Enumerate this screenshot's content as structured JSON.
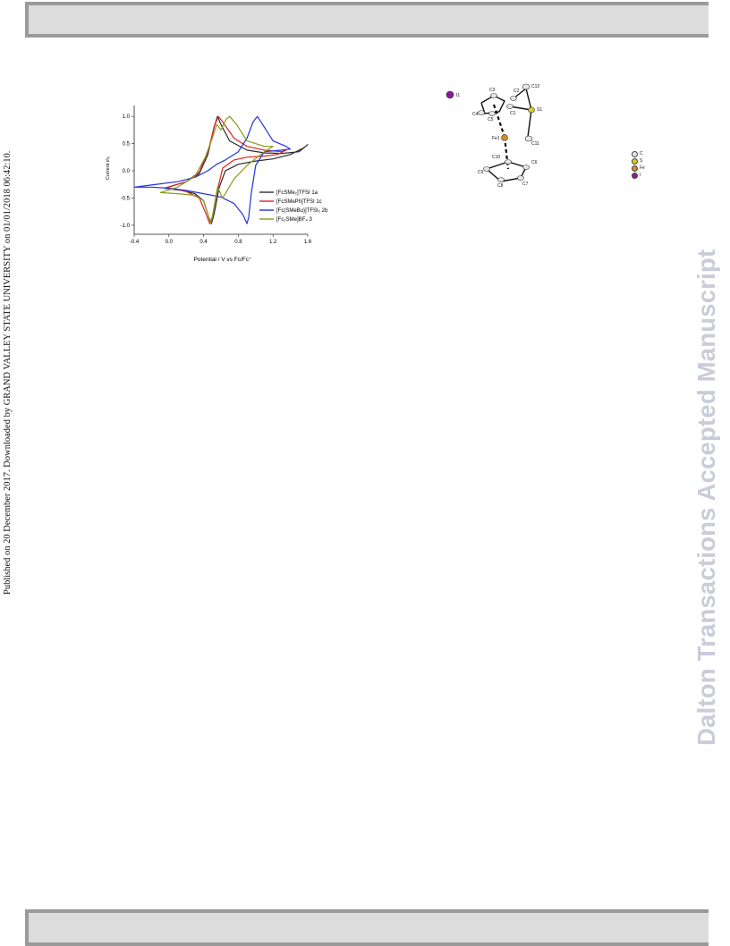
{
  "header": {
    "text": ""
  },
  "footer": {
    "text": ""
  },
  "side_note": "Published on 20 December 2017. Downloaded by GRAND VALLEY STATE UNIVERSITY on 01/01/2018 06:42:10.",
  "watermark": "Dalton Transactions Accepted Manuscript",
  "chart_data": {
    "type": "line",
    "title": "",
    "xlabel": "Potential / V vs Fc/Fc⁺",
    "ylabel": "Current i/i₀",
    "xlim": [
      -0.4,
      1.6
    ],
    "ylim": [
      -1.1,
      1.2
    ],
    "x_ticks": [
      "-0.4",
      "0.0",
      "0.4",
      "0.8",
      "1.2",
      "1.6"
    ],
    "y_ticks": [
      "1.0",
      "0.5",
      "0.0",
      "-0.5",
      "-1.0"
    ],
    "series": [
      {
        "name": "[FcSMe₂]TFSI 1a",
        "color": "#2b2b2b",
        "x": [
          -0.05,
          0.2,
          0.35,
          0.45,
          0.52,
          0.56,
          0.6,
          0.7,
          0.9,
          1.1,
          1.3,
          1.5,
          1.6,
          1.55,
          1.4,
          1.2,
          1.0,
          0.8,
          0.65,
          0.58,
          0.52,
          0.49,
          0.46,
          0.4,
          0.3,
          0.15,
          0.0,
          -0.05
        ],
        "y": [
          -0.32,
          -0.2,
          -0.05,
          0.3,
          0.8,
          1.0,
          0.85,
          0.55,
          0.38,
          0.33,
          0.32,
          0.35,
          0.48,
          0.42,
          0.3,
          0.22,
          0.18,
          0.12,
          0.0,
          -0.3,
          -0.8,
          -0.97,
          -0.85,
          -0.55,
          -0.42,
          -0.36,
          -0.33,
          -0.32
        ]
      },
      {
        "name": "[FcSMePh]TFSI 1c",
        "color": "#e02020",
        "x": [
          -0.05,
          0.2,
          0.35,
          0.45,
          0.53,
          0.57,
          0.62,
          0.75,
          0.9,
          1.1,
          1.3,
          1.35,
          1.25,
          1.1,
          0.9,
          0.75,
          0.62,
          0.56,
          0.5,
          0.47,
          0.43,
          0.35,
          0.2,
          0.05,
          -0.05
        ],
        "y": [
          -0.32,
          -0.2,
          -0.02,
          0.35,
          0.85,
          1.0,
          0.9,
          0.6,
          0.45,
          0.38,
          0.35,
          0.38,
          0.3,
          0.27,
          0.25,
          0.2,
          0.05,
          -0.35,
          -0.85,
          -0.97,
          -0.8,
          -0.5,
          -0.38,
          -0.33,
          -0.32
        ]
      },
      {
        "name": "[Fc(SMeBu)]TFSI₂ 2b",
        "color": "#2233dd",
        "x": [
          -0.4,
          -0.2,
          0.1,
          0.3,
          0.45,
          0.55,
          0.65,
          0.8,
          0.9,
          0.97,
          1.02,
          1.08,
          1.2,
          1.35,
          1.4,
          1.3,
          1.1,
          1.0,
          0.95,
          0.92,
          0.9,
          0.85,
          0.75,
          0.6,
          0.4,
          0.2,
          0.0,
          -0.2,
          -0.4
        ],
        "y": [
          -0.3,
          -0.26,
          -0.2,
          -0.12,
          0.0,
          0.12,
          0.2,
          0.35,
          0.6,
          0.9,
          1.0,
          0.85,
          0.55,
          0.45,
          0.4,
          0.38,
          0.35,
          0.1,
          -0.4,
          -0.85,
          -0.97,
          -0.8,
          -0.6,
          -0.48,
          -0.42,
          -0.36,
          -0.32,
          -0.3,
          -0.3
        ]
      },
      {
        "name": "[Fc₂SMe]BF₄ 3",
        "color": "#8a9a1a",
        "x": [
          -0.1,
          0.1,
          0.3,
          0.42,
          0.5,
          0.55,
          0.6,
          0.66,
          0.7,
          0.78,
          0.9,
          1.1,
          1.2,
          1.1,
          0.9,
          0.75,
          0.62,
          0.56,
          0.5,
          0.48,
          0.45,
          0.4,
          0.3,
          0.1,
          -0.1
        ],
        "y": [
          -0.4,
          -0.3,
          -0.1,
          0.25,
          0.6,
          0.85,
          0.75,
          0.95,
          1.0,
          0.85,
          0.55,
          0.45,
          0.45,
          0.35,
          0.1,
          -0.15,
          -0.5,
          -0.3,
          -0.85,
          -0.97,
          -0.8,
          -0.55,
          -0.45,
          -0.42,
          -0.4
        ]
      }
    ],
    "legend": "right"
  },
  "crystal_structure": {
    "atom_labels": [
      "I1",
      "C3",
      "C2",
      "C12",
      "C4",
      "C1",
      "S1",
      "C5",
      "Fe1",
      "C10",
      "C6",
      "C11",
      "C9",
      "C8",
      "C7"
    ],
    "legend": [
      {
        "label": "C",
        "color": "#e6e6e6"
      },
      {
        "label": "S",
        "color": "#d8d020"
      },
      {
        "label": "Fe",
        "color": "#d48a2a"
      },
      {
        "label": "I",
        "color": "#8a1a9a"
      }
    ]
  }
}
